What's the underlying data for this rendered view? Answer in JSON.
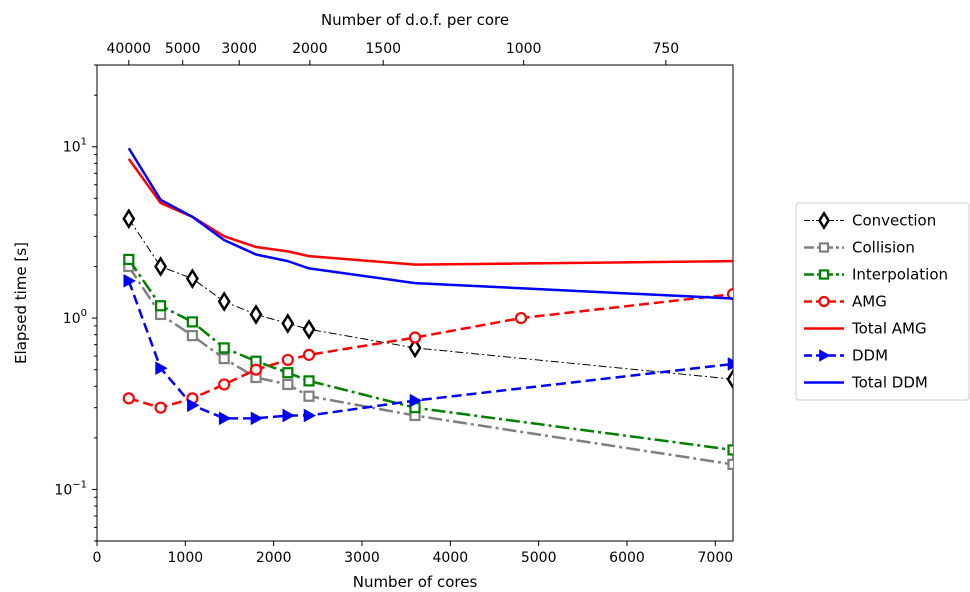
{
  "chart_data": {
    "type": "line",
    "xlabel": "Number of cores",
    "ylabel": "Elapsed time [s]",
    "x2label": "Number of d.o.f. per core",
    "xlim": [
      0,
      7200
    ],
    "ylim": [
      0.05,
      30
    ],
    "yscale": "log",
    "grid": false,
    "legend_position": "outside-right",
    "x_ticks": [
      {
        "value": 0,
        "label": "0"
      },
      {
        "value": 1000,
        "label": "1000"
      },
      {
        "value": 2000,
        "label": "2000"
      },
      {
        "value": 3000,
        "label": "3000"
      },
      {
        "value": 4000,
        "label": "4000"
      },
      {
        "value": 5000,
        "label": "5000"
      },
      {
        "value": 6000,
        "label": "6000"
      },
      {
        "value": 7000,
        "label": "7000"
      }
    ],
    "x2_ticks": [
      {
        "value": 360,
        "label": "40000"
      },
      {
        "value": 970,
        "label": "5000"
      },
      {
        "value": 1610,
        "label": "3000"
      },
      {
        "value": 2410,
        "label": "2000"
      },
      {
        "value": 3240,
        "label": "1500"
      },
      {
        "value": 4830,
        "label": "1000"
      },
      {
        "value": 6440,
        "label": "750"
      }
    ],
    "y_ticks": [
      {
        "value": 0.1,
        "base": "10",
        "exp": "−1"
      },
      {
        "value": 1,
        "base": "10",
        "exp": "0"
      },
      {
        "value": 10,
        "base": "10",
        "exp": "1"
      }
    ],
    "series": [
      {
        "name": "Convection",
        "color": "#000000",
        "dash": "dashdot-thin",
        "marker": "thin_diamond",
        "width": 1.0,
        "x": [
          360,
          720,
          1080,
          1440,
          1800,
          2160,
          2400,
          3600,
          7200
        ],
        "y": [
          3.8,
          2.0,
          1.7,
          1.25,
          1.05,
          0.93,
          0.86,
          0.67,
          0.44
        ]
      },
      {
        "name": "Collision",
        "color": "#808080",
        "dash": "dashdot",
        "marker": "square",
        "width": 2.5,
        "x": [
          360,
          720,
          1080,
          1440,
          1800,
          2160,
          2400,
          3600,
          7200
        ],
        "y": [
          2.0,
          1.05,
          0.79,
          0.58,
          0.45,
          0.41,
          0.35,
          0.27,
          0.14
        ]
      },
      {
        "name": "Interpolation",
        "color": "#008000",
        "dash": "dashdot",
        "marker": "square",
        "width": 2.5,
        "x": [
          360,
          720,
          1080,
          1440,
          1800,
          2160,
          2400,
          3600,
          7200
        ],
        "y": [
          2.2,
          1.18,
          0.95,
          0.67,
          0.56,
          0.48,
          0.43,
          0.3,
          0.17
        ]
      },
      {
        "name": "AMG",
        "color": "#ff0000",
        "dash": "dashed",
        "marker": "circle",
        "width": 2.5,
        "x": [
          360,
          720,
          1080,
          1440,
          1800,
          2160,
          2400,
          3600,
          4800,
          7200
        ],
        "y": [
          0.34,
          0.3,
          0.34,
          0.41,
          0.5,
          0.57,
          0.61,
          0.77,
          1.0,
          1.38
        ]
      },
      {
        "name": "Total AMG",
        "color": "#ff0000",
        "dash": "solid",
        "marker": "none",
        "width": 2.5,
        "x": [
          360,
          720,
          1080,
          1440,
          1800,
          2160,
          2400,
          3600,
          7200
        ],
        "y": [
          8.5,
          4.7,
          3.9,
          3.0,
          2.6,
          2.45,
          2.3,
          2.05,
          2.15
        ]
      },
      {
        "name": "DDM",
        "color": "#0000ff",
        "dash": "dashed",
        "marker": "triangle_right",
        "width": 2.5,
        "x": [
          360,
          720,
          1080,
          1440,
          1800,
          2160,
          2400,
          3600,
          7200
        ],
        "y": [
          1.65,
          0.51,
          0.31,
          0.26,
          0.26,
          0.27,
          0.27,
          0.33,
          0.54
        ]
      },
      {
        "name": "Total DDM",
        "color": "#0000ff",
        "dash": "solid",
        "marker": "none",
        "width": 2.5,
        "x": [
          360,
          720,
          1080,
          1440,
          1800,
          2160,
          2400,
          3600,
          7200
        ],
        "y": [
          9.8,
          4.9,
          3.9,
          2.85,
          2.35,
          2.15,
          1.95,
          1.6,
          1.3
        ]
      }
    ]
  }
}
